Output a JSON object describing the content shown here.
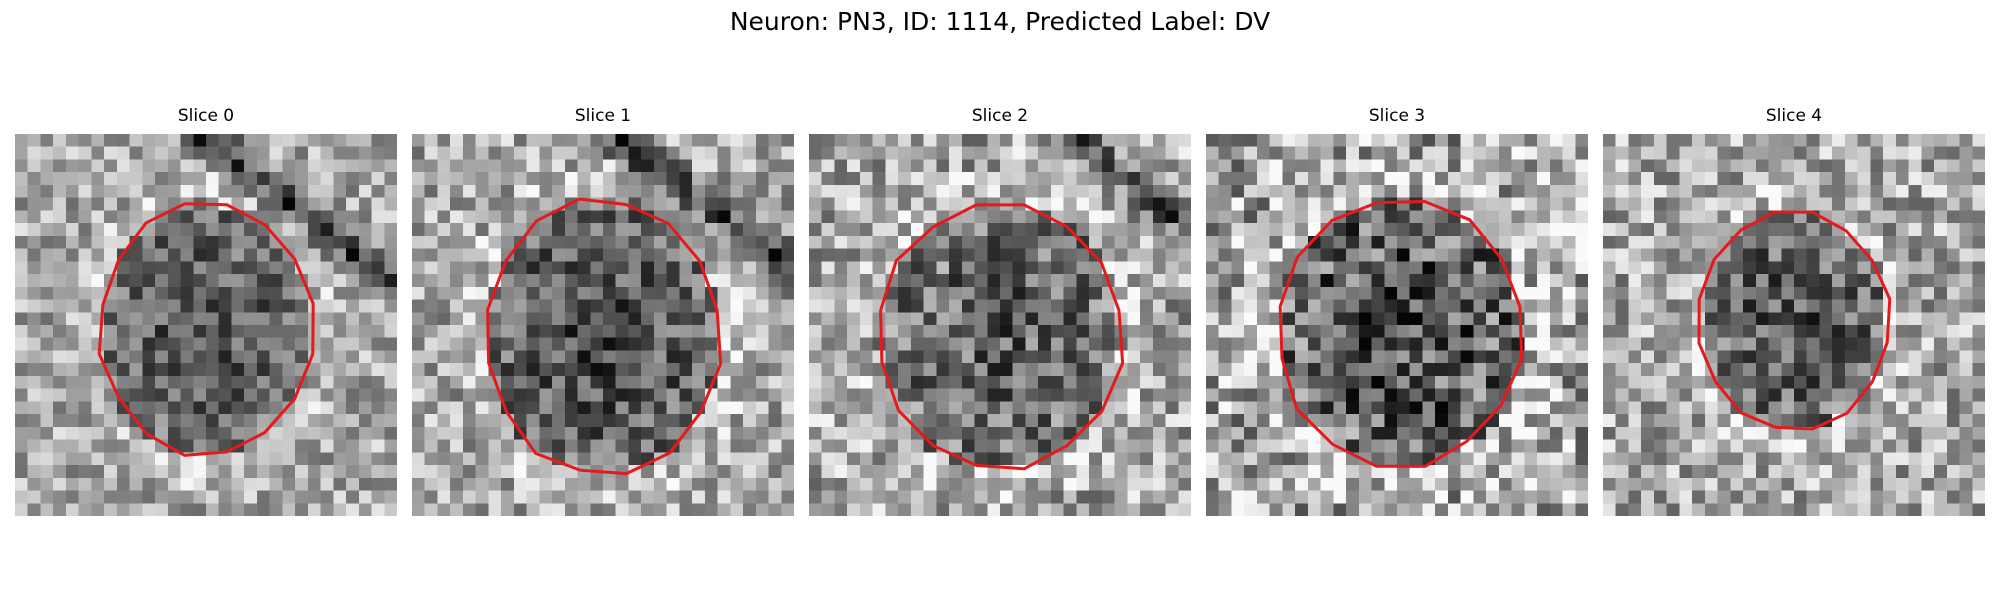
{
  "figure": {
    "title": "Neuron: PN3, ID: 1114, Predicted Label: DV"
  },
  "colors": {
    "contour": "#e41a1c",
    "background": "#ffffff"
  },
  "image_style": {
    "colormap": "grayscale",
    "pixel_grid": 30
  },
  "slices": [
    {
      "title": "Slice 0"
    },
    {
      "title": "Slice 1"
    },
    {
      "title": "Slice 2"
    },
    {
      "title": "Slice 3"
    },
    {
      "title": "Slice 4"
    }
  ]
}
